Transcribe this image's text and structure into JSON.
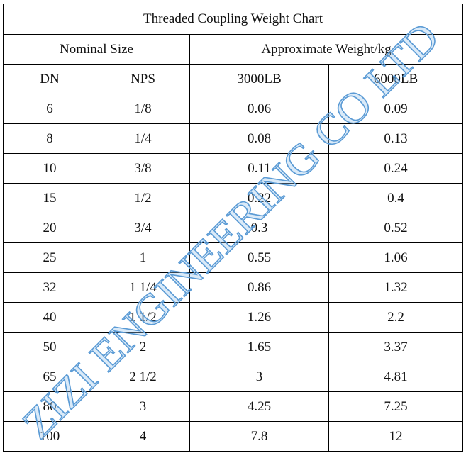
{
  "table": {
    "title": "Threaded Coupling Weight Chart",
    "groups": [
      "Nominal Size",
      "Approximate Weight/kg"
    ],
    "columns": [
      "DN",
      "NPS",
      "3000LB",
      "6000LB"
    ],
    "rows": [
      [
        "6",
        "1/8",
        "0.06",
        "0.09"
      ],
      [
        "8",
        "1/4",
        "0.08",
        "0.13"
      ],
      [
        "10",
        "3/8",
        "0.11",
        "0.24"
      ],
      [
        "15",
        "1/2",
        "0.22",
        "0.4"
      ],
      [
        "20",
        "3/4",
        "0.3",
        "0.52"
      ],
      [
        "25",
        "1",
        "0.55",
        "1.06"
      ],
      [
        "32",
        "1 1/4",
        "0.86",
        "1.32"
      ],
      [
        "40",
        "1 1/2",
        "1.26",
        "2.2"
      ],
      [
        "50",
        "2",
        "1.65",
        "3.37"
      ],
      [
        "65",
        "2 1/2",
        "3",
        "4.81"
      ],
      [
        "80",
        "3",
        "4.25",
        "7.25"
      ],
      [
        "100",
        "4",
        "7.8",
        "12"
      ]
    ]
  },
  "watermark": "ZIZI ENGINEERING CO LTD"
}
